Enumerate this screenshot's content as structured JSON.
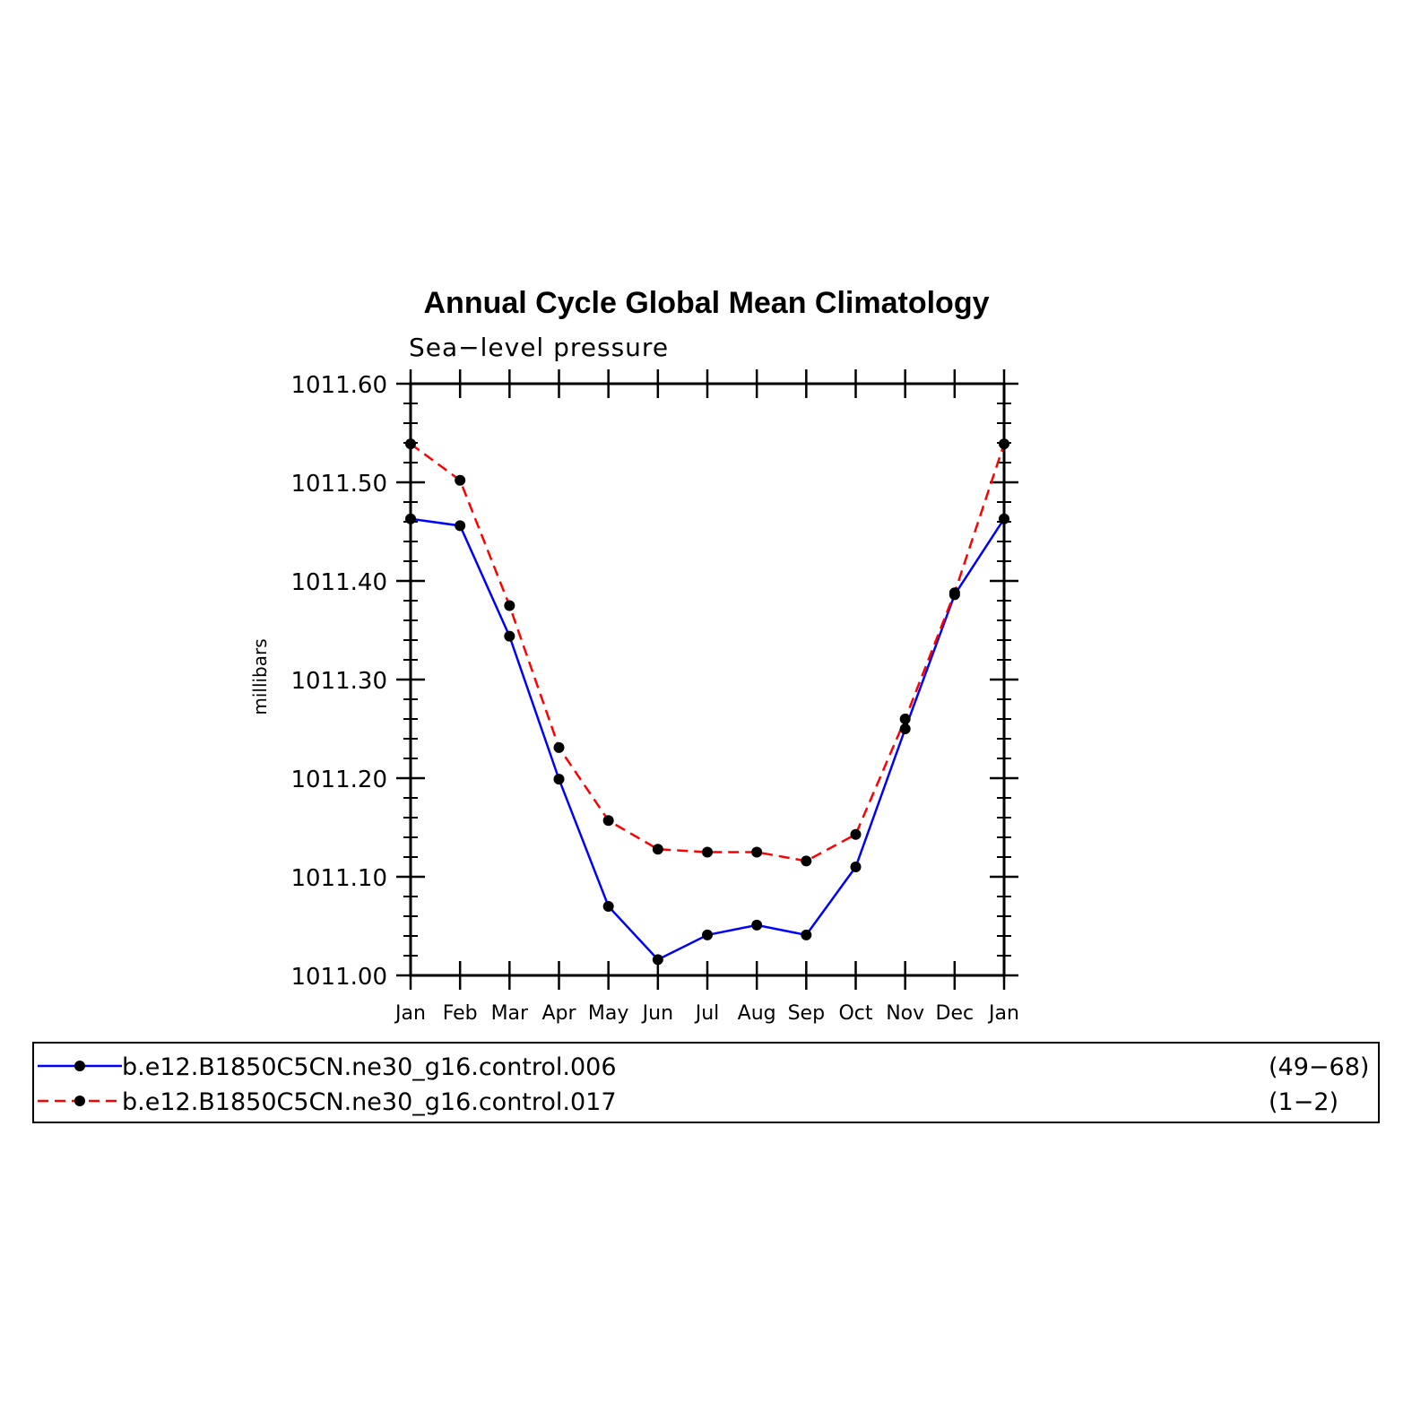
{
  "chart_data": {
    "type": "line",
    "title": "Annual Cycle Global Mean Climatology",
    "subtitle": "Sea−level pressure",
    "xlabel": "",
    "ylabel": "millibars",
    "categories": [
      "Jan",
      "Feb",
      "Mar",
      "Apr",
      "May",
      "Jun",
      "Jul",
      "Aug",
      "Sep",
      "Oct",
      "Nov",
      "Dec",
      "Jan"
    ],
    "ylim": [
      1011.0,
      1011.6
    ],
    "yticks": [
      1011.0,
      1011.1,
      1011.2,
      1011.3,
      1011.4,
      1011.5,
      1011.6
    ],
    "ytick_labels": [
      "1011.00",
      "1011.10",
      "1011.20",
      "1011.30",
      "1011.40",
      "1011.50",
      "1011.60"
    ],
    "grid": false,
    "legend_position": "bottom",
    "series": [
      {
        "name": "b.e12.B1850C5CN.ne30_g16.control.006",
        "years": "(49−68)",
        "color": "#0000ff",
        "dash": "solid",
        "values": [
          1011.463,
          1011.456,
          1011.344,
          1011.199,
          1011.07,
          1011.016,
          1011.041,
          1011.051,
          1011.041,
          1011.11,
          1011.25,
          1011.386,
          1011.463
        ]
      },
      {
        "name": "b.e12.B1850C5CN.ne30_g16.control.017",
        "years": "(1−2)",
        "color": "#ff0000",
        "dash": "dashed",
        "values": [
          1011.539,
          1011.502,
          1011.375,
          1011.231,
          1011.157,
          1011.128,
          1011.125,
          1011.125,
          1011.116,
          1011.143,
          1011.26,
          1011.388,
          1011.539
        ]
      }
    ]
  }
}
